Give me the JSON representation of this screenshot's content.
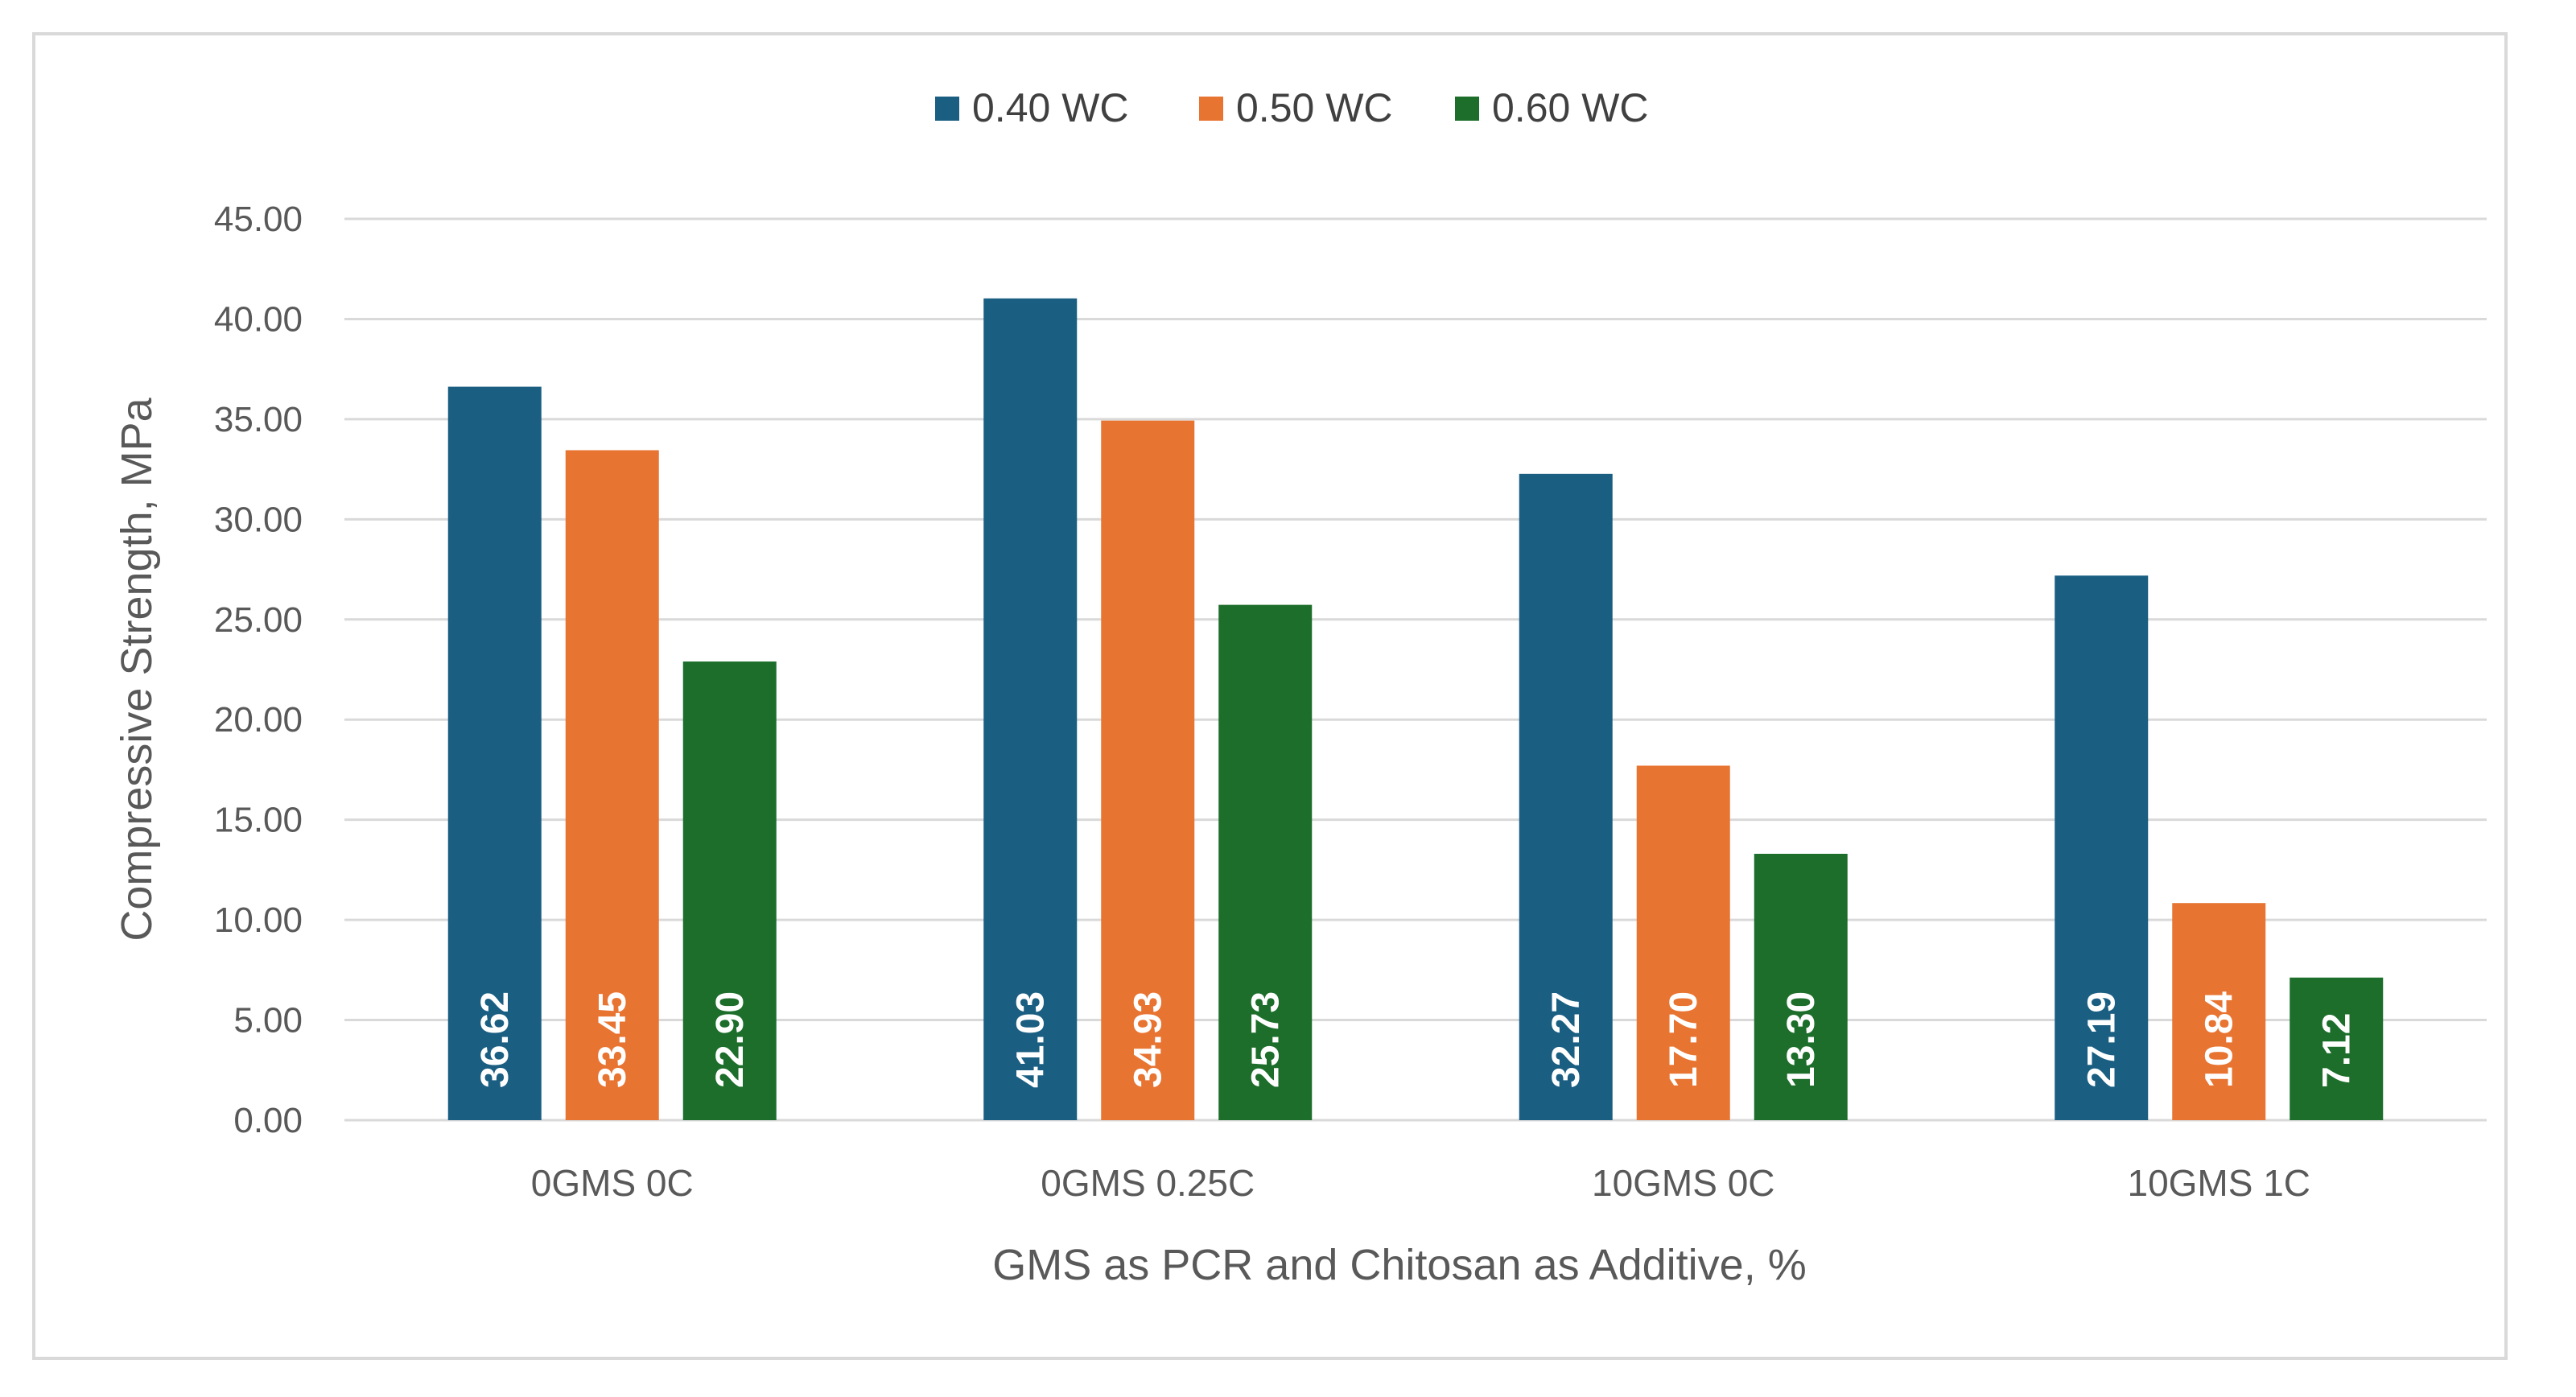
{
  "chart_data": {
    "type": "bar",
    "title": "",
    "categories": [
      "0GMS 0C",
      "0GMS 0.25C",
      "10GMS 0C",
      "10GMS 1C"
    ],
    "series": [
      {
        "name": "0.40 WC",
        "color": "#1a5e82",
        "values": [
          36.62,
          41.03,
          32.27,
          27.19
        ],
        "labels": [
          "36.62",
          "41.03",
          "32.27",
          "27.19"
        ]
      },
      {
        "name": "0.50 WC",
        "color": "#e87432",
        "values": [
          33.45,
          34.93,
          17.7,
          10.84
        ],
        "labels": [
          "33.45",
          "34.93",
          "17.70",
          "10.84"
        ]
      },
      {
        "name": "0.60 WC",
        "color": "#1c6e2a",
        "values": [
          22.9,
          25.73,
          13.3,
          7.12
        ],
        "labels": [
          "22.90",
          "25.73",
          "13.30",
          "7.12"
        ]
      }
    ],
    "xlabel": "GMS as PCR and Chitosan as Additive, %",
    "ylabel": "Compressive Strength, MPa",
    "ylim": [
      0,
      45
    ],
    "yticks": [
      "0.00",
      "5.00",
      "10.00",
      "15.00",
      "20.00",
      "25.00",
      "30.00",
      "35.00",
      "40.00",
      "45.00"
    ],
    "grid": true,
    "legend_position": "top-center"
  }
}
